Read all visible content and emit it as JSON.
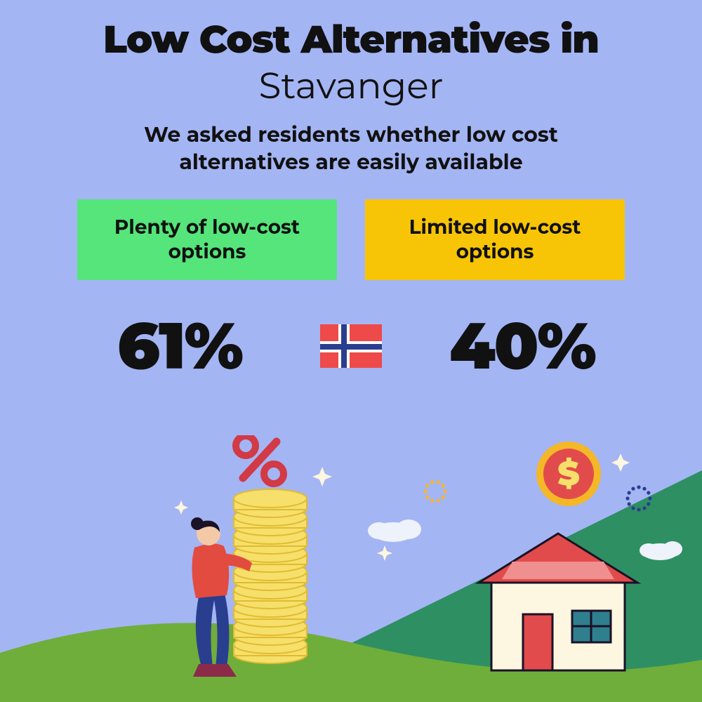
{
  "layout": {
    "background_color": "#a4b5f4",
    "text_color": "#111111"
  },
  "title": {
    "line1": "Low Cost Alternatives in",
    "city": "Stavanger",
    "line1_fontsize": 55,
    "line1_weight": 900,
    "city_fontsize": 52,
    "city_weight": 400
  },
  "subtitle": {
    "text": "We asked residents whether low cost alternatives are easily available",
    "fontsize": 30,
    "weight": 700
  },
  "options": {
    "left": {
      "label": "Plenty of low-cost options",
      "bg_color": "#55e57a",
      "text_color": "#111111",
      "value": "61%"
    },
    "right": {
      "label": "Limited low-cost options",
      "bg_color": "#f7c506",
      "text_color": "#111111",
      "value": "40%"
    },
    "box_fontsize": 28,
    "value_fontsize": 92,
    "value_weight": 900
  },
  "flag": {
    "name": "norway-flag",
    "base_color": "#ed4a49",
    "cross_outer": "#ffffff",
    "cross_inner": "#2a3e8f"
  },
  "illustration": {
    "ground_front": "#6fae3a",
    "ground_back": "#2e8f63",
    "sky_accent": "#a4b5f4",
    "person": {
      "shirt": "#e24b3f",
      "pants": "#2a3e8f",
      "hair": "#1a1226",
      "skin": "#f4c9a8",
      "boots": "#8c2a4a"
    },
    "coins": {
      "fill": "#f6df6a",
      "stroke": "#e0bb30"
    },
    "percent_symbol": "#d13a46",
    "house": {
      "wall": "#fdf6e0",
      "roof": "#e24b4b",
      "roof_top": "#f08f8f",
      "door": "#e24b4b",
      "window": "#2f7f8f",
      "outline": "#1a1226"
    },
    "dollar_coin": {
      "outer": "#f4b728",
      "inner": "#e24b4b",
      "symbol": "#f6df6a"
    },
    "cloud": "#eef2fb",
    "sparkle": "#fdf6e0",
    "dotring1": "#2a3e8f",
    "dotring2": "#f4b728"
  }
}
